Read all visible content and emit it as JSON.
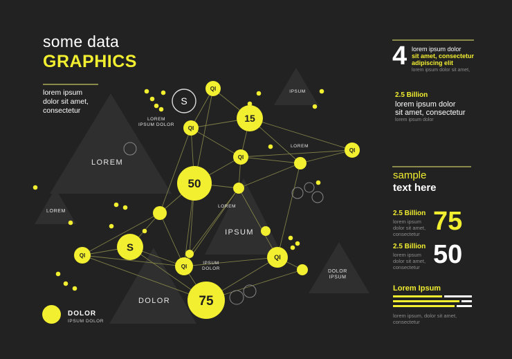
{
  "header": {
    "line1": "some data",
    "line2": "GRAPHICS",
    "intro": "lorem ipsum\ndolor sit amet,\nconsectetur"
  },
  "network": {
    "nodes": {
      "n_s_top": "S",
      "n_qi_a": "QI",
      "n_15": "15",
      "n_qi_b": "QI",
      "n_qi_c": "QI",
      "n_qi_d": "QI",
      "n_50": "50",
      "n_qi_e": "QI",
      "n_s_mid": "S",
      "n_qi_f": "QI",
      "n_qi_g": "QI",
      "n_75": "75"
    },
    "labels": {
      "lorem_ipsum_dolor": "LOREM\nIPSUM DOLOR",
      "lorem_right": "LOREM",
      "lorem_center": "LOREM",
      "ipsum_dolor": "IPSUM\nDOLOR",
      "ipsum_top": "IPSUM"
    },
    "triangles": {
      "lorem_big": "LOREM",
      "lorem_small": "LOREM",
      "ipsum_big": "IPSUM",
      "dolor_big": "DOLOR",
      "dolor_ipsum": "DOLOR\n\nIPSUM"
    },
    "legend": {
      "title": "DOLOR",
      "subtitle": "IPSUM DOLOR"
    }
  },
  "sidebar": {
    "stat4": {
      "value": "4",
      "line1": "lorem ipsum dolor",
      "line2": "sit amet, consectetur",
      "line3": "adipiscing elit",
      "line4": "lorem ipsum dolor sit amet,"
    },
    "billion_block": {
      "title": "2.5 Billion",
      "text": "lorem ipsum dolor\nsit amet, consectetur",
      "sub": "lorem ipsum dolor"
    },
    "sample": {
      "line1": "sample",
      "line2": "text here"
    },
    "stat75": {
      "title": "2.5 Billion",
      "text": "lorem ipsum\ndolor sit amet,\nconsectetur",
      "value": "75"
    },
    "stat50": {
      "title": "2.5 Billion",
      "text": "lorem ipsum\ndolor sit amet,\nconsectetur",
      "value": "50"
    },
    "bars_block": {
      "title": "Lorem Ipsum",
      "bars": [
        0.62,
        0.84,
        0.78
      ],
      "text": "lorem ipsum, dolor sit amet,\nconsectetur"
    }
  },
  "colors": {
    "background": "#222223",
    "accent": "#f2ee30",
    "triangle": "#2f2f30",
    "line": "#8a8a4a"
  }
}
